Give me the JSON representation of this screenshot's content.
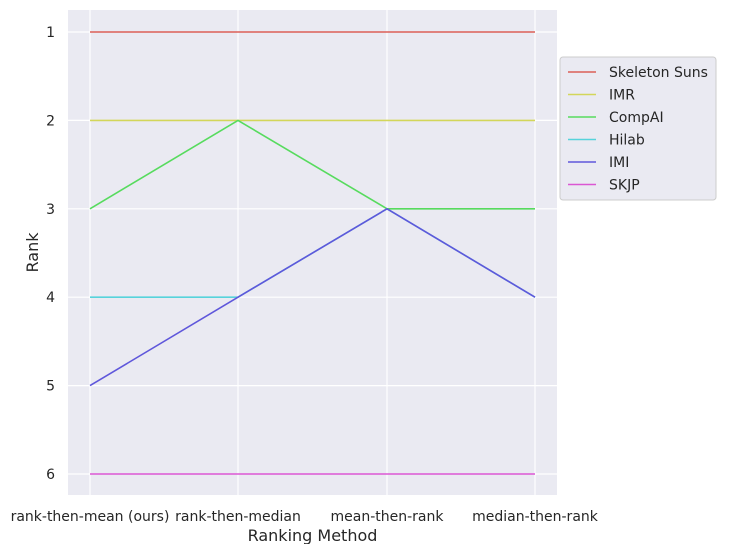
{
  "chart_data": {
    "type": "line",
    "xlabel": "Ranking Method",
    "ylabel": "Rank",
    "categories": [
      "rank-then-mean (ours)",
      "rank-then-median",
      "mean-then-rank",
      "median-then-rank"
    ],
    "yticks": [
      1,
      2,
      3,
      4,
      5,
      6
    ],
    "ylim": [
      1,
      6
    ],
    "y_inverted": true,
    "grid": true,
    "legend_position": "right",
    "series": [
      {
        "name": "Skeleton Suns",
        "color": "#db5f57",
        "values": [
          1,
          1,
          1,
          1
        ]
      },
      {
        "name": "IMR",
        "color": "#d3d65a",
        "values": [
          2,
          2,
          2,
          2
        ]
      },
      {
        "name": "CompAI",
        "color": "#57db5e",
        "values": [
          3,
          2,
          3,
          3
        ]
      },
      {
        "name": "Hilab",
        "color": "#57d3db",
        "values": [
          4,
          4,
          3,
          4
        ]
      },
      {
        "name": "IMI",
        "color": "#5f57db",
        "values": [
          5,
          4,
          3,
          4
        ]
      },
      {
        "name": "SKJP",
        "color": "#db57d3",
        "values": [
          6,
          6,
          6,
          6
        ]
      }
    ],
    "plot_background": "#eaeaf2",
    "grid_color": "#ffffff"
  }
}
